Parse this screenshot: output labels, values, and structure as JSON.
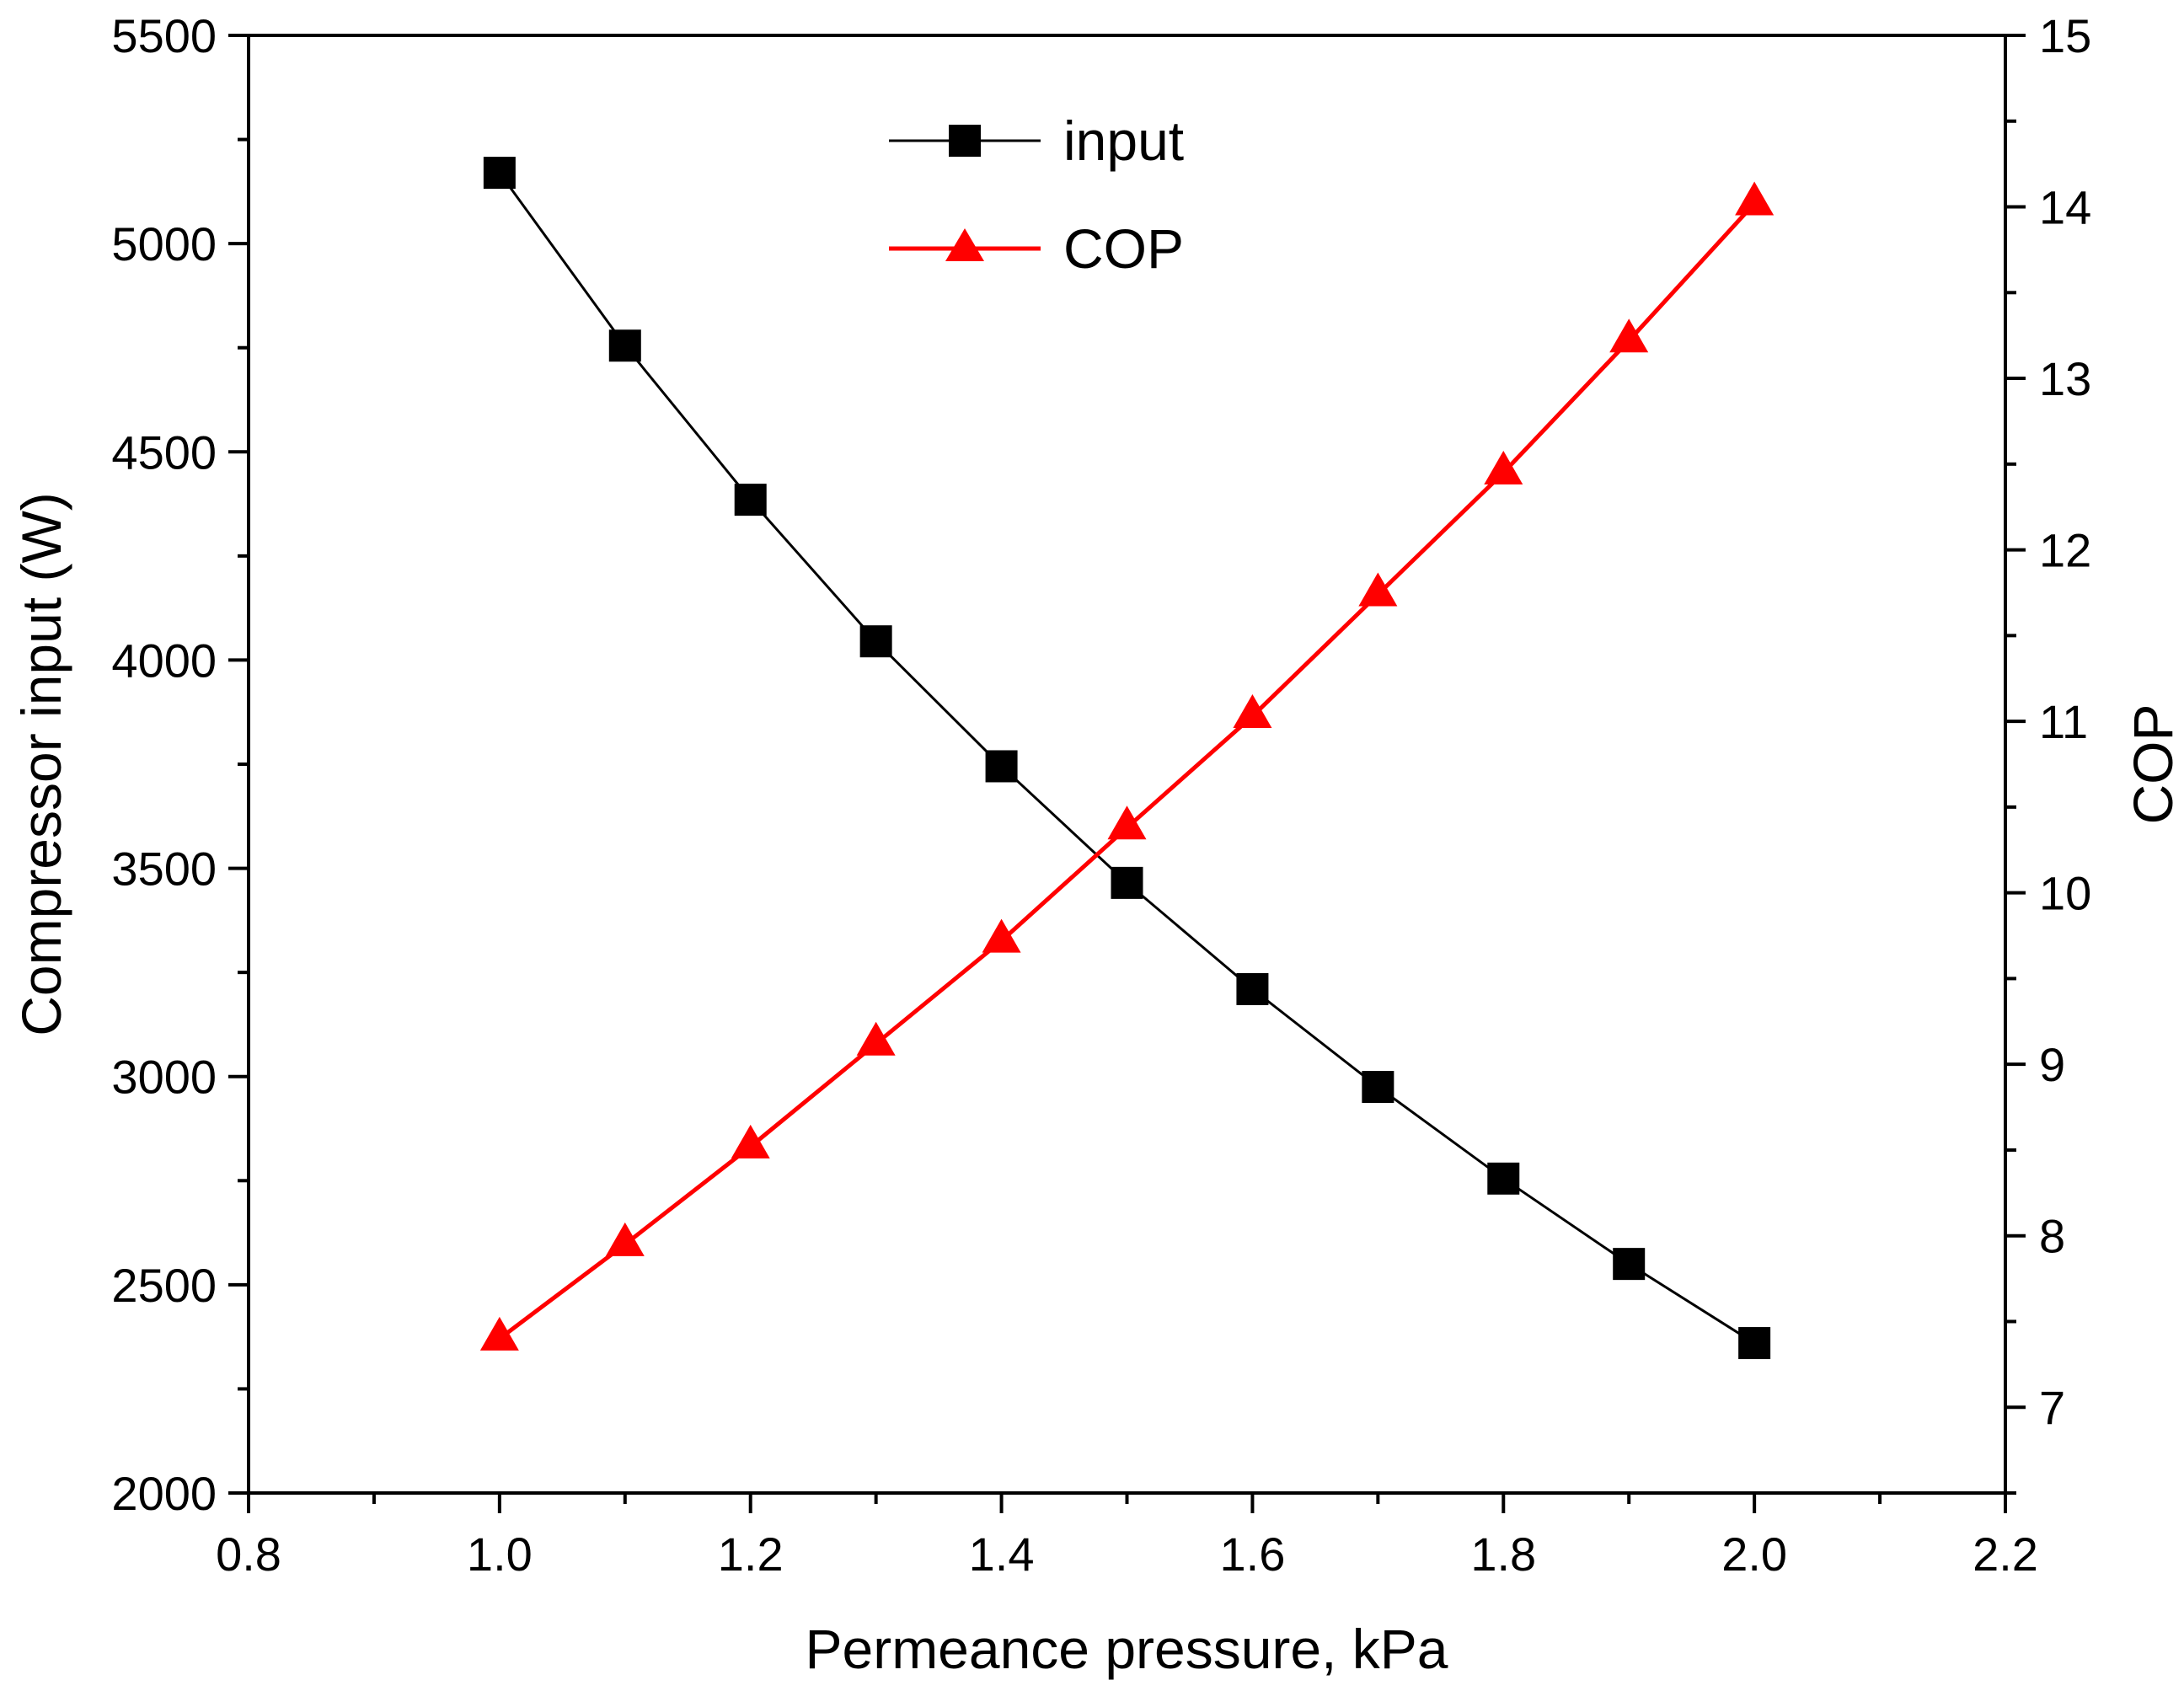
{
  "chart_data": {
    "type": "line",
    "title": "",
    "xlabel": "Permeance pressure, kPa",
    "ylabel_left": "Compressor input (W)",
    "ylabel_right": "COP",
    "xlim": [
      0.8,
      2.2
    ],
    "ylim_left": [
      2000,
      5500
    ],
    "ylim_right": [
      6.5,
      15
    ],
    "x_ticks": [
      "0.8",
      "1.0",
      "1.2",
      "1.4",
      "1.6",
      "1.8",
      "2.0",
      "2.2"
    ],
    "y_left_ticks": [
      "2000",
      "2500",
      "3000",
      "3500",
      "4000",
      "4500",
      "5000",
      "5500"
    ],
    "y_right_ticks": [
      "7",
      "8",
      "9",
      "10",
      "11",
      "12",
      "13",
      "14",
      "15"
    ],
    "grid": false,
    "legend_position": "top-center",
    "x": [
      1.0,
      1.1,
      1.2,
      1.3,
      1.4,
      1.5,
      1.6,
      1.7,
      1.8,
      1.9,
      2.0
    ],
    "series": [
      {
        "name": "input",
        "axis": "left",
        "marker": "square",
        "color": "#000000",
        "values": [
          5170,
          4755,
          4385,
          4045,
          3745,
          3465,
          3210,
          2975,
          2755,
          2550,
          2360
        ]
      },
      {
        "name": "COP",
        "axis": "right",
        "marker": "triangle",
        "color": "#ff0000",
        "values": [
          7.4,
          7.95,
          8.52,
          9.12,
          9.72,
          10.38,
          11.03,
          11.74,
          12.45,
          13.22,
          14.02
        ]
      }
    ]
  }
}
